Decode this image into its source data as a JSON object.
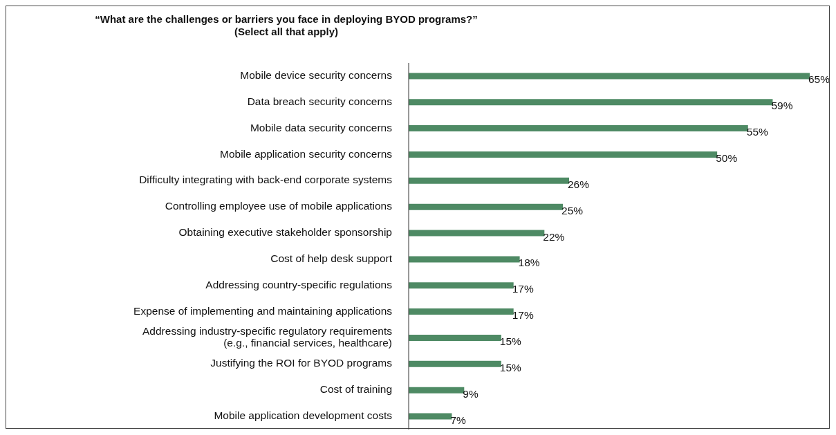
{
  "chart_data": {
    "type": "bar",
    "orientation": "horizontal",
    "title": "“What are the challenges or barriers you face in deploying BYOD programs?”",
    "subtitle": "(Select all that apply)",
    "categories": [
      "Mobile device security concerns",
      "Data breach security concerns",
      "Mobile data security concerns",
      "Mobile application security concerns",
      "Difficulty integrating with back-end corporate systems",
      "Controlling employee use of mobile applications",
      "Obtaining executive stakeholder sponsorship",
      "Cost of help desk support",
      "Addressing country-specific regulations",
      "Expense of implementing and maintaining applications",
      "Addressing industry-specific regulatory requirements (e.g., financial services, healthcare)",
      "Justifying the ROI for BYOD programs",
      "Cost of training",
      "Mobile application development costs"
    ],
    "values": [
      65,
      59,
      55,
      50,
      26,
      25,
      22,
      18,
      17,
      17,
      15,
      15,
      9,
      7
    ],
    "value_labels": [
      "65%",
      "59%",
      "55%",
      "50%",
      "26%",
      "25%",
      "22%",
      "18%",
      "17%",
      "17%",
      "15%",
      "15%",
      "9%",
      "7%"
    ],
    "color": "#4e8a64"
  }
}
